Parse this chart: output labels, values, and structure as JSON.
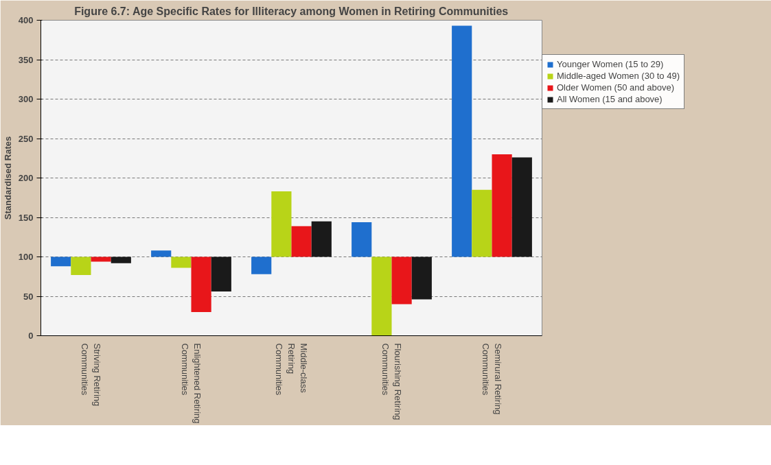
{
  "chart_data": {
    "type": "bar",
    "title": "Figure 6.7: Age Specific Rates for Illiteracy among Women in Retiring Communities",
    "ylabel": "Standardised Rates",
    "categories": [
      "Striving Retiring\nCommunities",
      "Enlightened Retiring\nCommunities",
      "Middle-class\nRetiring\nCommunities",
      "Flourishing Retiring\nCommunities",
      "Semirural Retiring\nCommunities"
    ],
    "series": [
      {
        "name": "Younger Women (15 to 29)",
        "color": "#1f6fce",
        "base": [
          100,
          100,
          100,
          100,
          100
        ],
        "values": [
          -12,
          8,
          -22,
          44,
          293
        ]
      },
      {
        "name": "Middle-aged Women (30 to 49)",
        "color": "#b8d418",
        "base": [
          100,
          100,
          100,
          100,
          100
        ],
        "values": [
          -23,
          -14,
          83,
          -100,
          85
        ]
      },
      {
        "name": "Older Women (50 and above)",
        "color": "#e8161a",
        "base": [
          100,
          100,
          100,
          100,
          100
        ],
        "values": [
          -6,
          -70,
          39,
          -60,
          130
        ]
      },
      {
        "name": "All Women (15 and above)",
        "color": "#1a1a1a",
        "base": [
          100,
          100,
          100,
          100,
          100
        ],
        "values": [
          -8,
          -44,
          45,
          -54,
          126
        ]
      }
    ],
    "ylim": [
      0,
      400
    ],
    "yticks": [
      0,
      50,
      100,
      150,
      200,
      250,
      300,
      350,
      400
    ],
    "grid": "y",
    "legend": "right"
  }
}
